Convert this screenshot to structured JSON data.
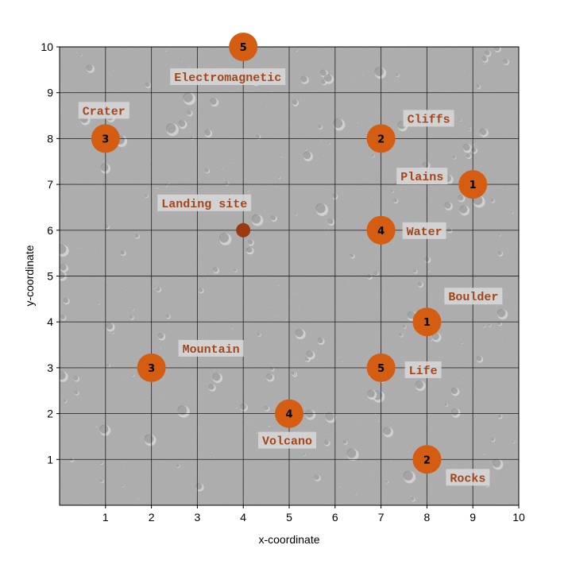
{
  "chart_data": {
    "type": "scatter",
    "xlabel": "x-coordinate",
    "ylabel": "y-coordinate",
    "xlim": [
      0,
      10
    ],
    "ylim": [
      0,
      10
    ],
    "grid": true,
    "x_ticks": [
      "1",
      "2",
      "3",
      "4",
      "5",
      "6",
      "7",
      "8",
      "9",
      "10"
    ],
    "y_ticks": [
      "1",
      "2",
      "3",
      "4",
      "5",
      "6",
      "7",
      "8",
      "9",
      "10"
    ],
    "colors": {
      "marker": "#d45d12",
      "landing": "#9b3a10",
      "label_text": "#a4461a",
      "label_bg": "#d6d6d6"
    },
    "landing_site": {
      "label": "Landing site",
      "x": 4,
      "y": 6
    },
    "sites": [
      {
        "label": "Electromagnetic",
        "x": 4,
        "y": 10,
        "value": "5"
      },
      {
        "label": "Crater",
        "x": 1,
        "y": 8,
        "value": "3"
      },
      {
        "label": "Cliffs",
        "x": 7,
        "y": 8,
        "value": "2"
      },
      {
        "label": "Plains",
        "x": 9,
        "y": 7,
        "value": "1"
      },
      {
        "label": "Water",
        "x": 7,
        "y": 6,
        "value": "4"
      },
      {
        "label": "Boulder",
        "x": 8,
        "y": 4,
        "value": "1"
      },
      {
        "label": "Mountain",
        "x": 2,
        "y": 3,
        "value": "3"
      },
      {
        "label": "Life",
        "x": 7,
        "y": 3,
        "value": "5"
      },
      {
        "label": "Volcano",
        "x": 5,
        "y": 2,
        "value": "4"
      },
      {
        "label": "Rocks",
        "x": 8,
        "y": 1,
        "value": "2"
      }
    ]
  }
}
